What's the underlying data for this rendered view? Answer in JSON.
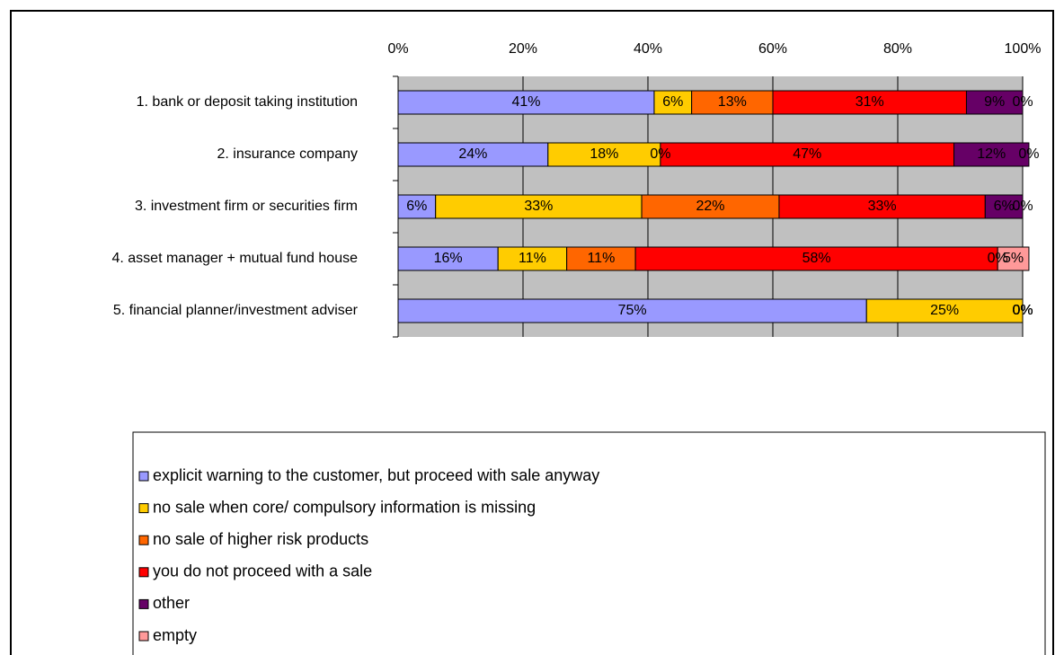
{
  "chart_data": {
    "type": "stacked-bar-horizontal",
    "categories": [
      "1. bank or deposit taking institution",
      "2. insurance company",
      "3. investment firm or securities firm",
      "4. asset manager + mutual fund house",
      "5. financial planner/investment adviser"
    ],
    "series": [
      {
        "name": "explicit warning to the customer, but proceed with sale anyway",
        "color": "#9999ff",
        "values": [
          41,
          24,
          6,
          16,
          75
        ],
        "value_labels": [
          "41%",
          "24%",
          "6%",
          "16%",
          "75%"
        ]
      },
      {
        "name": "no sale when core/ compulsory information is missing",
        "color": "#ffcc00",
        "values": [
          6,
          18,
          33,
          11,
          25
        ],
        "value_labels": [
          "6%",
          "18%",
          "33%",
          "11%",
          "25%"
        ]
      },
      {
        "name": "no sale of higher risk products",
        "color": "#ff6600",
        "values": [
          13,
          0,
          22,
          11,
          0
        ],
        "value_labels": [
          "13%",
          "0%",
          "22%",
          "11%",
          "0%"
        ]
      },
      {
        "name": "you do not proceed with a sale",
        "color": "#ff0000",
        "values": [
          31,
          47,
          33,
          58,
          0
        ],
        "value_labels": [
          "31%",
          "47%",
          "33%",
          "58%",
          "0%"
        ]
      },
      {
        "name": "other",
        "color": "#660066",
        "values": [
          9,
          12,
          6,
          0,
          0
        ],
        "value_labels": [
          "9%",
          "12%",
          "6%",
          "0%",
          "0%"
        ]
      },
      {
        "name": "empty",
        "color": "#ff9999",
        "values": [
          0,
          0,
          0,
          5,
          0
        ],
        "value_labels": [
          "0%",
          "0%",
          "0%",
          "5%",
          "0%"
        ]
      }
    ],
    "xlim": [
      0,
      100
    ],
    "xticks": [
      {
        "value": 0,
        "label": "0%"
      },
      {
        "value": 20,
        "label": "20%"
      },
      {
        "value": 40,
        "label": "40%"
      },
      {
        "value": 60,
        "label": "60%"
      },
      {
        "value": 80,
        "label": "80%"
      },
      {
        "value": 100,
        "label": "100%"
      }
    ],
    "grid": true,
    "legend": "bottom"
  }
}
